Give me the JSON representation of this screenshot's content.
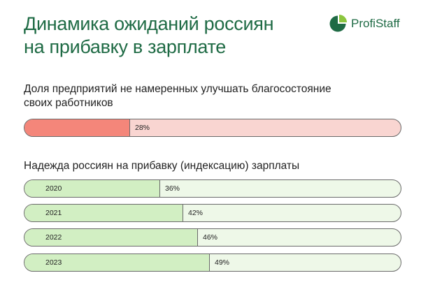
{
  "header": {
    "title_line1": "Динамика ожиданий россиян",
    "title_line2": "на прибавку в зарплате",
    "logo_text": "ProfiStaff"
  },
  "colors": {
    "accent": "#1f6b45",
    "red_fill": "#f4867a",
    "red_track": "#f9d5d1",
    "green_fill": "#d2efc3",
    "green_track": "#eef8e8"
  },
  "chart_data": [
    {
      "type": "bar",
      "title": "Доля предприятий не намеренных улучшать благосостояние своих работников",
      "categories": [
        ""
      ],
      "values": [
        28
      ],
      "value_labels": [
        "28%"
      ],
      "unit": "%",
      "ylim": [
        0,
        100
      ]
    },
    {
      "type": "bar",
      "title": "Надежда россиян на прибавку (индексацию) зарплаты",
      "categories": [
        "2020",
        "2021",
        "2022",
        "2023"
      ],
      "values": [
        36,
        42,
        46,
        49
      ],
      "value_labels": [
        "36%",
        "42%",
        "46%",
        "49%"
      ],
      "unit": "%",
      "ylim": [
        0,
        100
      ]
    }
  ]
}
